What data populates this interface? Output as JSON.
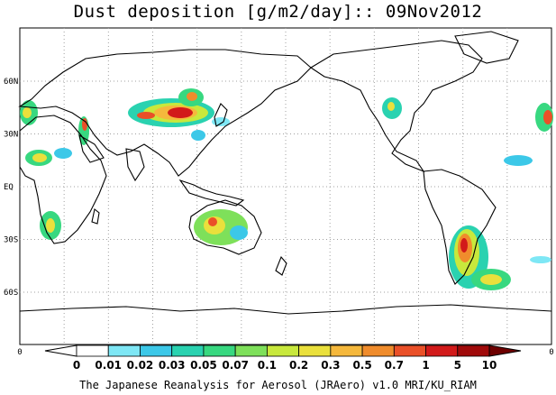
{
  "title": "Dust deposition [g/m2/day]:: 09Nov2012",
  "footer": "The Japanese Reanalysis for Aerosol (JRAero) v1.0 MRI/KU_RIAM",
  "lat_labels": [
    "60N",
    "30N",
    "EQ",
    "30S",
    "60S"
  ],
  "lat_values": [
    60,
    30,
    0,
    -30,
    -60
  ],
  "axis_zero_left": "0",
  "axis_zero_right": "0",
  "colorbar": {
    "labels": [
      "0",
      "0.01",
      "0.02",
      "0.03",
      "0.05",
      "0.07",
      "0.1",
      "0.2",
      "0.3",
      "0.5",
      "0.7",
      "1",
      "5",
      "10"
    ],
    "colors": [
      "#ffffff",
      "#ffffff",
      "#7ee7f5",
      "#3cc8e8",
      "#2ad2b0",
      "#38d880",
      "#7ee05a",
      "#c8e83c",
      "#eae03c",
      "#f5b83c",
      "#f08c2c",
      "#ea5028",
      "#d21a1a",
      "#a00a0a",
      "#6e0000"
    ]
  },
  "colors": {
    "grid": "#a0a0a0",
    "coast": "#000000",
    "frame": "#000000"
  }
}
